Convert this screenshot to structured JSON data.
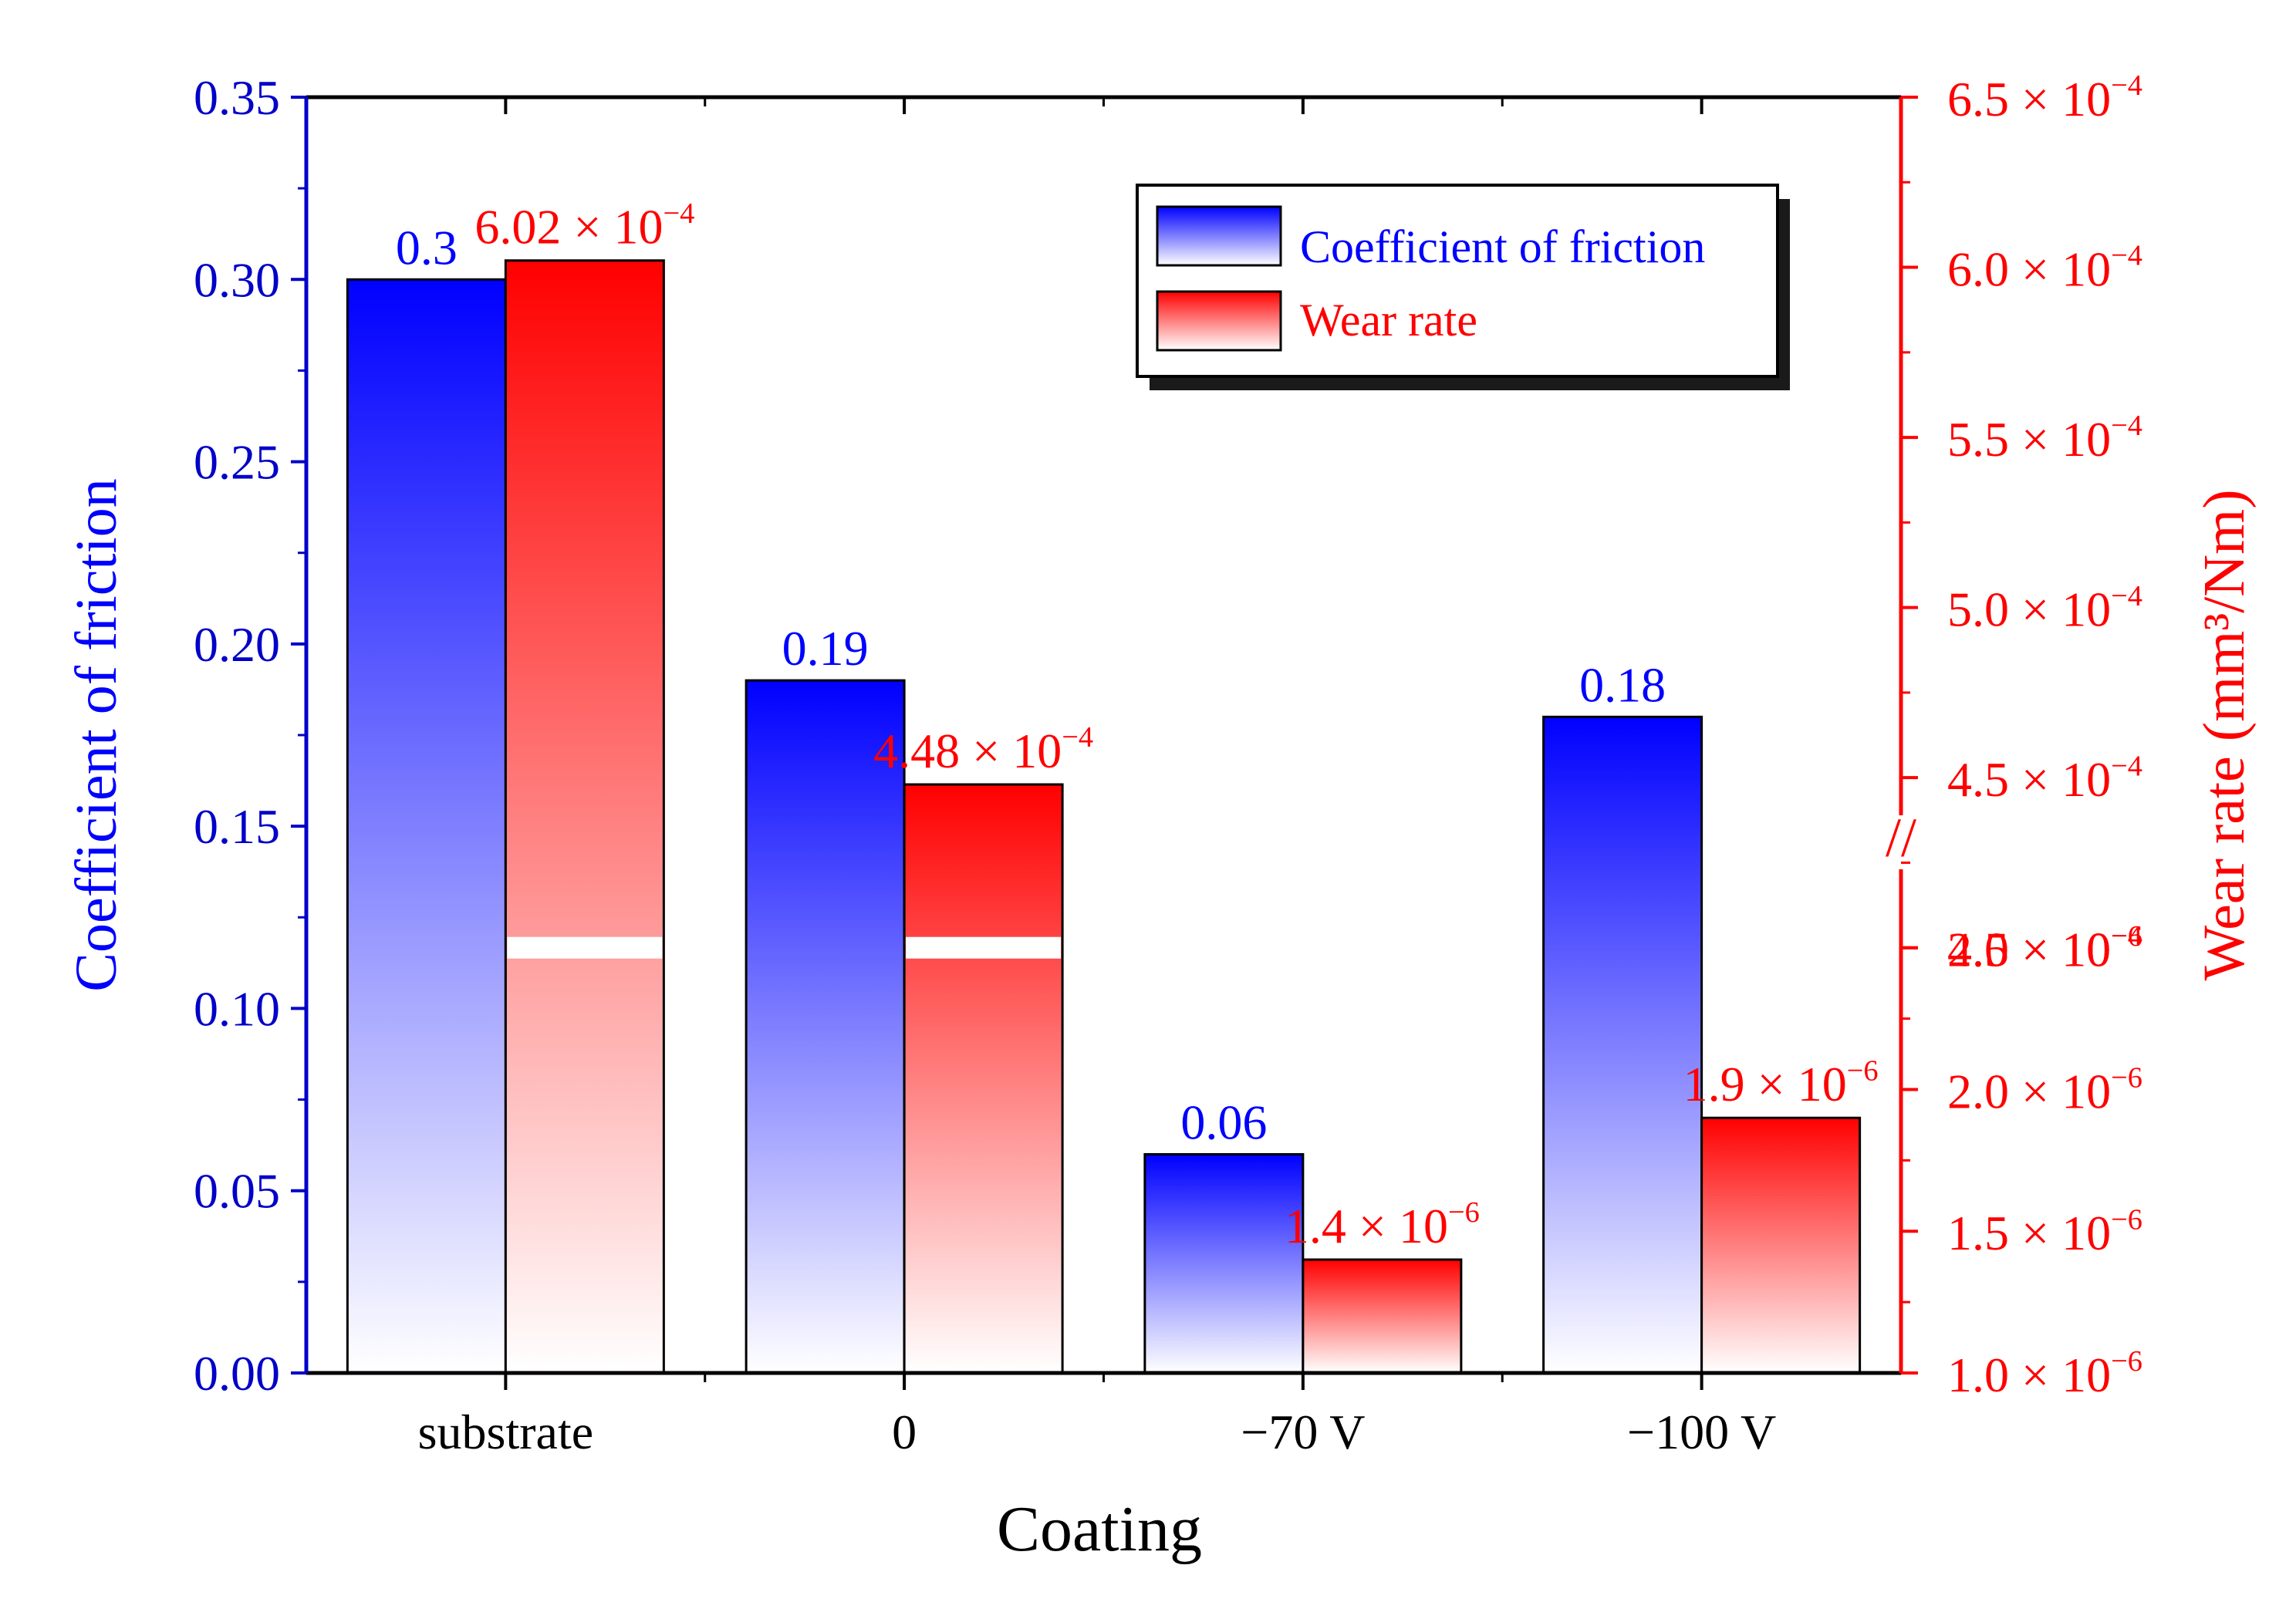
{
  "chart_data": {
    "type": "bar",
    "categories": [
      "substrate",
      "0",
      "−70 V",
      "−100 V"
    ],
    "xlabel": "Coating",
    "ylabel_left": "Coefficient of friction",
    "ylabel_right": "Wear rate (mm³/Nm)",
    "ylim_left": [
      0,
      0.35
    ],
    "left_ticks": [
      "0.00",
      "0.05",
      "0.10",
      "0.15",
      "0.20",
      "0.25",
      "0.30",
      "0.35"
    ],
    "right_axis": {
      "broken": true,
      "lower_range": [
        1e-06,
        2.5e-06
      ],
      "upper_range": [
        0.0004,
        0.00065
      ],
      "break_symbol": "//",
      "ticks": [
        {
          "mant": "1.0",
          "exp": "−6",
          "value": 1e-06
        },
        {
          "mant": "1.5",
          "exp": "−6",
          "value": 1.5e-06
        },
        {
          "mant": "2.0",
          "exp": "−6",
          "value": 2e-06
        },
        {
          "mant": "2.5",
          "exp": "−6",
          "value": 2.5e-06
        },
        {
          "mant": "4.0",
          "exp": "−4",
          "value": 0.0004
        },
        {
          "mant": "4.5",
          "exp": "−4",
          "value": 0.00045
        },
        {
          "mant": "5.0",
          "exp": "−4",
          "value": 0.0005
        },
        {
          "mant": "5.5",
          "exp": "−4",
          "value": 0.00055
        },
        {
          "mant": "6.0",
          "exp": "−4",
          "value": 0.0006
        },
        {
          "mant": "6.5",
          "exp": "−4",
          "value": 0.00065
        }
      ]
    },
    "series": [
      {
        "name": "Coefficient of friction",
        "axis": "left",
        "color": "#0000ff",
        "values": [
          0.3,
          0.19,
          0.06,
          0.18
        ],
        "labels": [
          "0.3",
          "0.19",
          "0.06",
          "0.18"
        ]
      },
      {
        "name": "Wear rate",
        "axis": "right",
        "color": "#ff0000",
        "values": [
          0.000602,
          0.000448,
          1.4e-06,
          1.9e-06
        ],
        "label_mantissas": [
          "6.02",
          "4.48",
          "1.4",
          "1.9"
        ],
        "label_exponents": [
          "−4",
          "−4",
          "−6",
          "−6"
        ]
      }
    ],
    "legend": {
      "position": "top-right",
      "entries": [
        "Coefficient of friction",
        "Wear rate"
      ]
    },
    "colors": {
      "friction": "#0000ff",
      "wear": "#ff0000",
      "axis_left": "#0000c8",
      "axis_right": "#ff0000"
    }
  }
}
